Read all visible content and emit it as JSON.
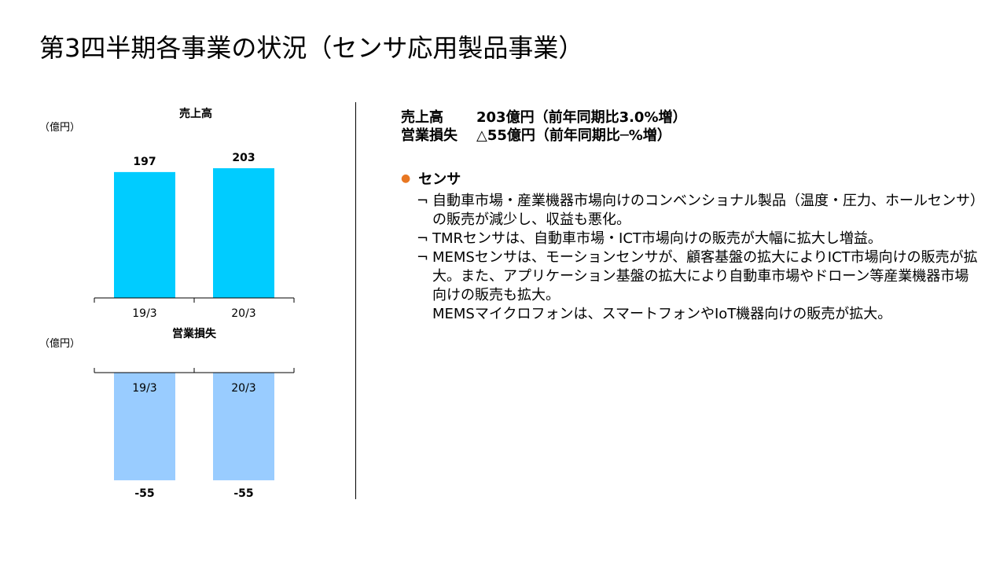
{
  "title": "第3四半期各事業の状況（センサ応用製品事業）",
  "colors": {
    "sales_bar": "#00ccff",
    "loss_bar": "#99ccff",
    "bullet_dot": "#e87722"
  },
  "chart_data": [
    {
      "type": "bar",
      "title": "売上高",
      "unit_label": "（億円）",
      "categories": [
        "19/3",
        "20/3"
      ],
      "values": [
        197,
        203
      ],
      "data_labels": [
        "197",
        "203"
      ]
    },
    {
      "type": "bar",
      "title": "営業損失",
      "unit_label": "（億円）",
      "categories": [
        "19/3",
        "20/3"
      ],
      "values": [
        -55,
        -55
      ],
      "data_labels": [
        "-55",
        "-55"
      ]
    }
  ],
  "summary": {
    "sales_label": "売上高",
    "sales_value": "203億円（前年同期比3.0%増）",
    "loss_label": "営業損失",
    "loss_value": "△55億円（前年同期比─%増）"
  },
  "section": {
    "heading": "センサ",
    "bullet_glyph": "●",
    "bullet_mark": "¬",
    "items": [
      "自動車市場・産業機器市場向けのコンベンショナル製品（温度・圧力、ホールセンサ）の販売が減少し、収益も悪化。",
      "TMRセンサは、自動車市場・ICT市場向けの販売が大幅に拡大し増益。",
      "MEMSセンサは、モーションセンサが、顧客基盤の拡大によりICT市場向けの販売が拡大。また、アプリケーション基盤の拡大により自動車市場やドローン等産業機器市場向けの販売も拡大。"
    ],
    "extra": "MEMSマイクロフォンは、スマートフォンやIoT機器向けの販売が拡大。"
  }
}
